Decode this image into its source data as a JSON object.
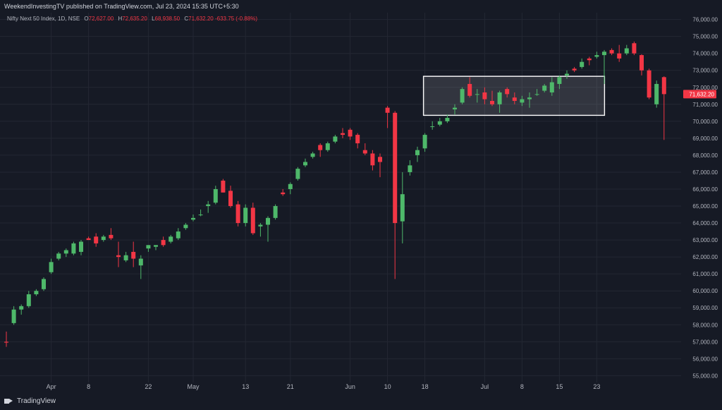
{
  "header": {
    "publisher": "WeekendInvestingTV published on TradingView.com, Jul 23, 2024 15:35 UTC+5:30"
  },
  "legend": {
    "symbol": "Nifty Next 50 Index, 1D, NSE",
    "open_label": "O",
    "open": "72,627.00",
    "high_label": "H",
    "high": "72,635.20",
    "low_label": "L",
    "low": "68,938.50",
    "close_label": "C",
    "close": "71,632.20",
    "change": "-633.75 (-0.88%)"
  },
  "footer": {
    "brand": "TradingView"
  },
  "colors": {
    "background": "#161a25",
    "up": "#4eb86a",
    "down": "#f23645",
    "grid": "#232733",
    "text": "#b2b5be",
    "box": "#ffffff"
  },
  "chart_data": {
    "type": "candlestick",
    "y_axis": {
      "side": "right",
      "range": [
        54600,
        76400
      ],
      "ticks": [
        "76,000.00",
        "75,000.00",
        "74,000.00",
        "73,000.00",
        "72,000.00",
        "71,000.00",
        "70,000.00",
        "69,000.00",
        "68,000.00",
        "67,000.00",
        "66,000.00",
        "65,000.00",
        "64,000.00",
        "63,000.00",
        "62,000.00",
        "61,000.00",
        "60,000.00",
        "59,000.00",
        "58,000.00",
        "57,000.00",
        "56,000.00",
        "55,000.00"
      ]
    },
    "x_axis": {
      "labels": [
        {
          "label": "Apr",
          "bar": 6
        },
        {
          "label": "8",
          "bar": 11
        },
        {
          "label": "22",
          "bar": 19
        },
        {
          "label": "May",
          "bar": 25
        },
        {
          "label": "13",
          "bar": 32
        },
        {
          "label": "21",
          "bar": 38
        },
        {
          "label": "Jun",
          "bar": 46
        },
        {
          "label": "10",
          "bar": 51
        },
        {
          "label": "18",
          "bar": 56
        },
        {
          "label": "Jul",
          "bar": 64
        },
        {
          "label": "8",
          "bar": 69
        },
        {
          "label": "15",
          "bar": 74
        },
        {
          "label": "23",
          "bar": 79
        }
      ]
    },
    "last_price_label": "71,632.20",
    "annotations": [
      {
        "type": "rectangle",
        "from_bar": 56,
        "to_bar": 79,
        "low": 70350,
        "high": 72650
      }
    ],
    "candles": [
      {
        "o": 57000,
        "h": 57600,
        "l": 56700,
        "c": 56950
      },
      {
        "o": 58100,
        "h": 59100,
        "l": 58000,
        "c": 58900
      },
      {
        "o": 58900,
        "h": 59200,
        "l": 58600,
        "c": 59100
      },
      {
        "o": 59100,
        "h": 60000,
        "l": 59000,
        "c": 59800
      },
      {
        "o": 59800,
        "h": 60100,
        "l": 59700,
        "c": 60000
      },
      {
        "o": 60100,
        "h": 60800,
        "l": 60000,
        "c": 60700
      },
      {
        "o": 61100,
        "h": 61900,
        "l": 61000,
        "c": 61700
      },
      {
        "o": 61900,
        "h": 62300,
        "l": 61800,
        "c": 62200
      },
      {
        "o": 62200,
        "h": 62500,
        "l": 62000,
        "c": 62400
      },
      {
        "o": 62200,
        "h": 62900,
        "l": 62100,
        "c": 62800
      },
      {
        "o": 62300,
        "h": 63000,
        "l": 62100,
        "c": 62900
      },
      {
        "o": 63100,
        "h": 63200,
        "l": 63000,
        "c": 63000
      },
      {
        "o": 63200,
        "h": 63400,
        "l": 62600,
        "c": 62800
      },
      {
        "o": 63000,
        "h": 63300,
        "l": 62900,
        "c": 63200
      },
      {
        "o": 63300,
        "h": 63700,
        "l": 63000,
        "c": 63100
      },
      {
        "o": 62100,
        "h": 62900,
        "l": 61400,
        "c": 62000
      },
      {
        "o": 61800,
        "h": 62300,
        "l": 61700,
        "c": 62100
      },
      {
        "o": 62300,
        "h": 62900,
        "l": 61400,
        "c": 61900
      },
      {
        "o": 61500,
        "h": 62100,
        "l": 60700,
        "c": 61900
      },
      {
        "o": 62500,
        "h": 62700,
        "l": 62300,
        "c": 62700
      },
      {
        "o": 62600,
        "h": 62700,
        "l": 62400,
        "c": 62700
      },
      {
        "o": 63000,
        "h": 63200,
        "l": 62600,
        "c": 62700
      },
      {
        "o": 62900,
        "h": 63300,
        "l": 62800,
        "c": 63200
      },
      {
        "o": 63100,
        "h": 63700,
        "l": 63000,
        "c": 63500
      },
      {
        "o": 63700,
        "h": 64000,
        "l": 63600,
        "c": 63900
      },
      {
        "o": 64200,
        "h": 64500,
        "l": 64100,
        "c": 64300
      },
      {
        "o": 64500,
        "h": 64800,
        "l": 64400,
        "c": 64500
      },
      {
        "o": 65000,
        "h": 65300,
        "l": 64600,
        "c": 65100
      },
      {
        "o": 65200,
        "h": 66200,
        "l": 65100,
        "c": 66000
      },
      {
        "o": 66500,
        "h": 66600,
        "l": 65800,
        "c": 65800
      },
      {
        "o": 65900,
        "h": 66200,
        "l": 64900,
        "c": 65000
      },
      {
        "o": 65100,
        "h": 65300,
        "l": 63800,
        "c": 64000
      },
      {
        "o": 64000,
        "h": 65100,
        "l": 63800,
        "c": 64900
      },
      {
        "o": 64900,
        "h": 65200,
        "l": 63300,
        "c": 63400
      },
      {
        "o": 63800,
        "h": 64000,
        "l": 63200,
        "c": 63900
      },
      {
        "o": 63900,
        "h": 64400,
        "l": 62900,
        "c": 64300
      },
      {
        "o": 64300,
        "h": 65100,
        "l": 64200,
        "c": 65000
      },
      {
        "o": 65800,
        "h": 66000,
        "l": 65600,
        "c": 65700
      },
      {
        "o": 66000,
        "h": 66400,
        "l": 65700,
        "c": 66300
      },
      {
        "o": 66600,
        "h": 67300,
        "l": 66500,
        "c": 67200
      },
      {
        "o": 67400,
        "h": 67800,
        "l": 67300,
        "c": 67600
      },
      {
        "o": 67900,
        "h": 68200,
        "l": 67800,
        "c": 68100
      },
      {
        "o": 68600,
        "h": 68700,
        "l": 67900,
        "c": 68300
      },
      {
        "o": 68300,
        "h": 68800,
        "l": 68200,
        "c": 68700
      },
      {
        "o": 68800,
        "h": 69200,
        "l": 68700,
        "c": 69100
      },
      {
        "o": 69300,
        "h": 69600,
        "l": 69000,
        "c": 69200
      },
      {
        "o": 69500,
        "h": 69600,
        "l": 68900,
        "c": 69100
      },
      {
        "o": 69200,
        "h": 69300,
        "l": 68400,
        "c": 68700
      },
      {
        "o": 68300,
        "h": 68700,
        "l": 68000,
        "c": 68100
      },
      {
        "o": 68100,
        "h": 68300,
        "l": 67100,
        "c": 67400
      },
      {
        "o": 67900,
        "h": 68100,
        "l": 66700,
        "c": 67600
      },
      {
        "o": 70800,
        "h": 70900,
        "l": 69600,
        "c": 70500
      },
      {
        "o": 70500,
        "h": 70600,
        "l": 60700,
        "c": 64000
      },
      {
        "o": 64100,
        "h": 67000,
        "l": 62800,
        "c": 65700
      },
      {
        "o": 67000,
        "h": 67700,
        "l": 66800,
        "c": 67400
      },
      {
        "o": 68000,
        "h": 68500,
        "l": 67600,
        "c": 68300
      },
      {
        "o": 68400,
        "h": 69300,
        "l": 68200,
        "c": 69200
      },
      {
        "o": 69700,
        "h": 70000,
        "l": 69500,
        "c": 69700
      },
      {
        "o": 69800,
        "h": 70200,
        "l": 69700,
        "c": 70000
      },
      {
        "o": 70000,
        "h": 70400,
        "l": 69900,
        "c": 70200
      },
      {
        "o": 70700,
        "h": 71000,
        "l": 70400,
        "c": 70800
      },
      {
        "o": 71100,
        "h": 72000,
        "l": 71000,
        "c": 71900
      },
      {
        "o": 72200,
        "h": 72600,
        "l": 71400,
        "c": 71500
      },
      {
        "o": 71600,
        "h": 71900,
        "l": 71100,
        "c": 71600
      },
      {
        "o": 71700,
        "h": 72000,
        "l": 71000,
        "c": 71300
      },
      {
        "o": 71200,
        "h": 71800,
        "l": 70900,
        "c": 71000
      },
      {
        "o": 71000,
        "h": 71800,
        "l": 70500,
        "c": 71700
      },
      {
        "o": 71900,
        "h": 72000,
        "l": 71400,
        "c": 71600
      },
      {
        "o": 71400,
        "h": 71700,
        "l": 71000,
        "c": 71200
      },
      {
        "o": 71100,
        "h": 71500,
        "l": 70900,
        "c": 71300
      },
      {
        "o": 71300,
        "h": 71700,
        "l": 70800,
        "c": 71400
      },
      {
        "o": 71600,
        "h": 71900,
        "l": 71500,
        "c": 71600
      },
      {
        "o": 71800,
        "h": 72200,
        "l": 71700,
        "c": 72100
      },
      {
        "o": 71700,
        "h": 72600,
        "l": 71500,
        "c": 72300
      },
      {
        "o": 72200,
        "h": 72700,
        "l": 71900,
        "c": 72600
      },
      {
        "o": 72700,
        "h": 73000,
        "l": 72500,
        "c": 72800
      },
      {
        "o": 73100,
        "h": 73200,
        "l": 72900,
        "c": 73000
      },
      {
        "o": 73200,
        "h": 73700,
        "l": 73100,
        "c": 73500
      },
      {
        "o": 73700,
        "h": 73800,
        "l": 73300,
        "c": 73600
      },
      {
        "o": 73800,
        "h": 74100,
        "l": 73700,
        "c": 73900
      },
      {
        "o": 73900,
        "h": 74200,
        "l": 72200,
        "c": 74100
      },
      {
        "o": 74200,
        "h": 74300,
        "l": 73900,
        "c": 74000
      },
      {
        "o": 74000,
        "h": 74500,
        "l": 73500,
        "c": 73700
      },
      {
        "o": 74000,
        "h": 74500,
        "l": 73900,
        "c": 74300
      },
      {
        "o": 74600,
        "h": 74700,
        "l": 73900,
        "c": 74000
      },
      {
        "o": 73900,
        "h": 73950,
        "l": 72700,
        "c": 73000
      },
      {
        "o": 73000,
        "h": 73100,
        "l": 71300,
        "c": 71400
      },
      {
        "o": 71000,
        "h": 72400,
        "l": 70800,
        "c": 72200
      },
      {
        "o": 72600,
        "h": 72650,
        "l": 68900,
        "c": 71600
      }
    ]
  }
}
